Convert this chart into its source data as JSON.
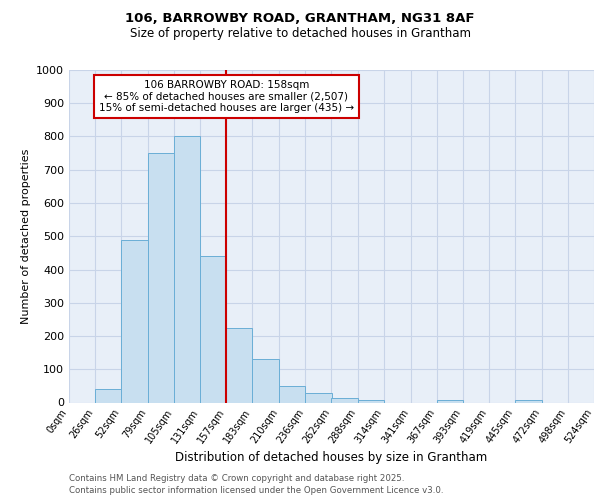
{
  "title1": "106, BARROWBY ROAD, GRANTHAM, NG31 8AF",
  "title2": "Size of property relative to detached houses in Grantham",
  "xlabel": "Distribution of detached houses by size in Grantham",
  "ylabel": "Number of detached properties",
  "bin_labels": [
    "0sqm",
    "26sqm",
    "52sqm",
    "79sqm",
    "105sqm",
    "131sqm",
    "157sqm",
    "183sqm",
    "210sqm",
    "236sqm",
    "262sqm",
    "288sqm",
    "314sqm",
    "341sqm",
    "367sqm",
    "393sqm",
    "419sqm",
    "445sqm",
    "472sqm",
    "498sqm",
    "524sqm"
  ],
  "bin_edges": [
    0,
    26,
    52,
    79,
    105,
    131,
    157,
    183,
    210,
    236,
    262,
    288,
    314,
    341,
    367,
    393,
    419,
    445,
    472,
    498,
    524
  ],
  "bar_heights": [
    0,
    40,
    490,
    750,
    800,
    440,
    225,
    130,
    50,
    28,
    15,
    8,
    0,
    0,
    8,
    0,
    0,
    8,
    0,
    0
  ],
  "bar_facecolor": "#c8dff0",
  "bar_edgecolor": "#6aaed6",
  "grid_color": "#c8d4e8",
  "bg_color": "#e8eff8",
  "red_line_x": 157,
  "annotation_text": "106 BARROWBY ROAD: 158sqm\n← 85% of detached houses are smaller (2,507)\n15% of semi-detached houses are larger (435) →",
  "annotation_box_color": "#cc0000",
  "ylim": [
    0,
    1000
  ],
  "yticks": [
    0,
    100,
    200,
    300,
    400,
    500,
    600,
    700,
    800,
    900,
    1000
  ],
  "footnote1": "Contains HM Land Registry data © Crown copyright and database right 2025.",
  "footnote2": "Contains public sector information licensed under the Open Government Licence v3.0."
}
